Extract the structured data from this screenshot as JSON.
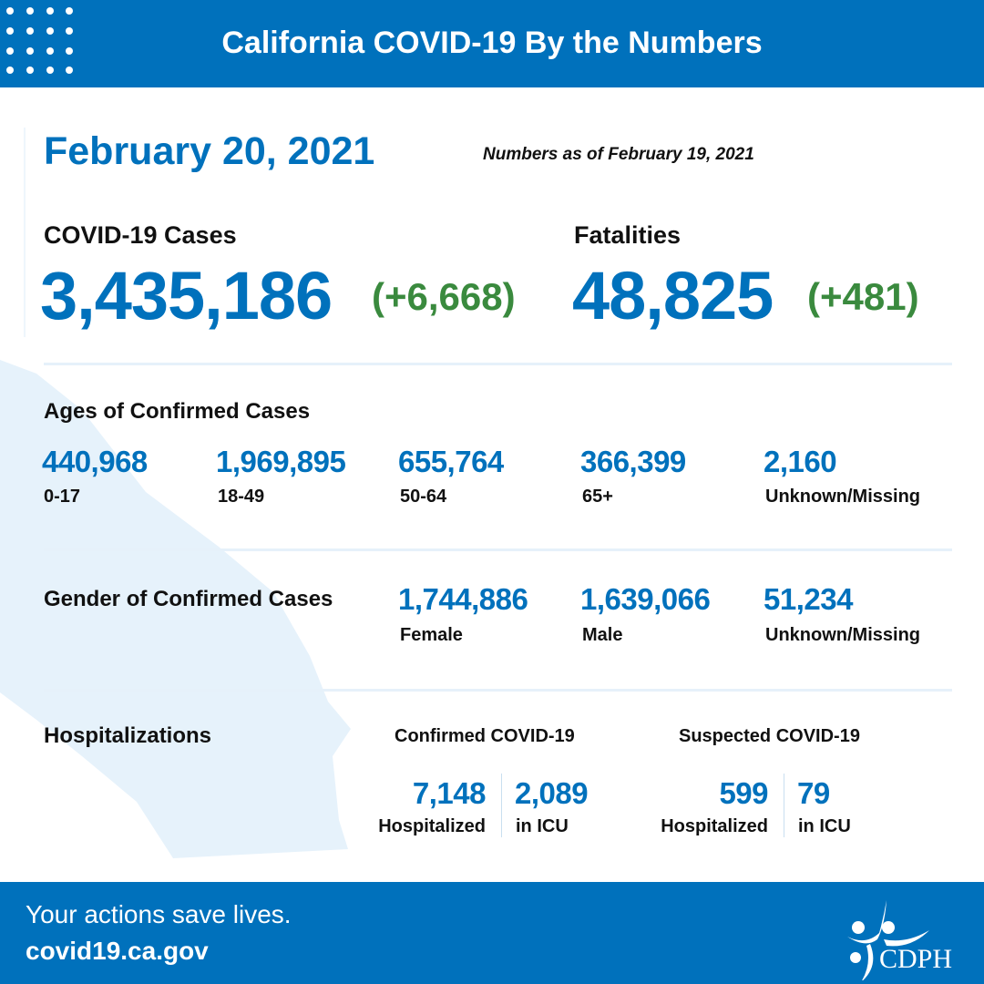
{
  "header": {
    "title": "California COVID-19 By the Numbers"
  },
  "date": "February 20, 2021",
  "as_of": "Numbers as of February 19, 2021",
  "cases": {
    "label": "COVID-19 Cases",
    "total": "3,435,186",
    "change": "(+6,668)"
  },
  "fatalities": {
    "label": "Fatalities",
    "total": "48,825",
    "change": "(+481)"
  },
  "ages": {
    "heading": "Ages of Confirmed Cases",
    "groups": [
      {
        "value": "440,968",
        "label": "0-17"
      },
      {
        "value": "1,969,895",
        "label": "18-49"
      },
      {
        "value": "655,764",
        "label": "50-64"
      },
      {
        "value": "366,399",
        "label": "65+"
      },
      {
        "value": "2,160",
        "label": "Unknown/Missing"
      }
    ]
  },
  "gender": {
    "heading": "Gender of Confirmed Cases",
    "groups": [
      {
        "value": "1,744,886",
        "label": "Female"
      },
      {
        "value": "1,639,066",
        "label": "Male"
      },
      {
        "value": "51,234",
        "label": "Unknown/Missing"
      }
    ]
  },
  "hospitalizations": {
    "heading": "Hospitalizations",
    "confirmed": {
      "label": "Confirmed COVID-19",
      "hospitalized": "7,148",
      "hospitalized_label": "Hospitalized",
      "icu": "2,089",
      "icu_label": "in ICU"
    },
    "suspected": {
      "label": "Suspected COVID-19",
      "hospitalized": "599",
      "hospitalized_label": "Hospitalized",
      "icu": "79",
      "icu_label": "in ICU"
    }
  },
  "footer": {
    "tagline": "Your actions save lives.",
    "url": "covid19.ca.gov",
    "logo_text": "CDPH"
  },
  "colors": {
    "brand_blue": "#0071bc",
    "increase_green": "#3a8a3e",
    "map_fill": "#e6f2fb"
  }
}
